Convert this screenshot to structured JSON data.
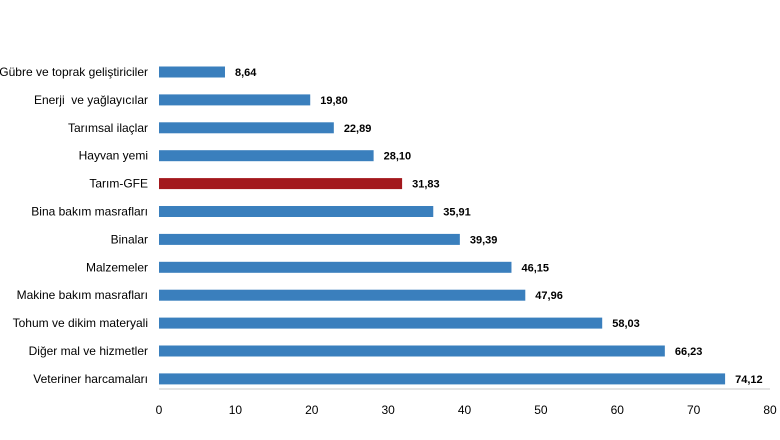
{
  "chart_data": {
    "type": "bar",
    "orientation": "horizontal",
    "title": "",
    "xlabel": "",
    "ylabel": "",
    "xlim": [
      0,
      80
    ],
    "ticks": [
      0,
      10,
      20,
      30,
      40,
      50,
      60,
      70,
      80
    ],
    "grid": false,
    "legend": "none",
    "bar_color": "#3a7fbd",
    "highlight_color": "#a3181c",
    "highlight_category": "Tarım-GFE",
    "categories": [
      "Gübre ve toprak geliştiriciler",
      "Enerji  ve yağlayıcılar",
      "Tarımsal ilaçlar",
      "Hayvan yemi",
      "Tarım-GFE",
      "Bina bakım masrafları",
      "Binalar",
      "Malzemeler",
      "Makine bakım masrafları",
      "Tohum ve dikim materyali",
      "Diğer mal ve hizmetler",
      "Veteriner harcamaları"
    ],
    "values": [
      8.64,
      19.8,
      22.89,
      28.1,
      31.83,
      35.91,
      39.39,
      46.15,
      47.96,
      58.03,
      66.23,
      74.12
    ],
    "value_labels": [
      "8,64",
      "19,80",
      "22,89",
      "28,10",
      "31,83",
      "35,91",
      "39,39",
      "46,15",
      "47,96",
      "58,03",
      "66,23",
      "74,12"
    ]
  }
}
